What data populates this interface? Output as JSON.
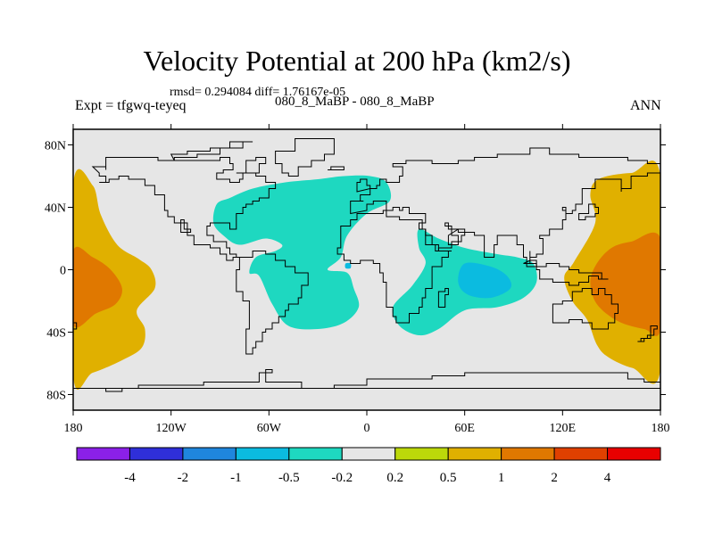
{
  "header": {
    "title": "Velocity Potential at 200 hPa (km2/s)",
    "stats": "rmsd= 0.294084 diff= 1.76167e-05",
    "experiment": "Expt = tfgwq-teyeq",
    "difference": "080_8_MaBP - 080_8_MaBP",
    "season": "ANN"
  },
  "chart_data": {
    "type": "heatmap",
    "title": "Velocity Potential at 200 hPa (km2/s)",
    "projection": "cylindrical-equidistant",
    "xlim": [
      -180,
      180
    ],
    "ylim": [
      -90,
      90
    ],
    "x_ticks": [
      {
        "value": -180,
        "label": "180"
      },
      {
        "value": -120,
        "label": "120W"
      },
      {
        "value": -60,
        "label": "60W"
      },
      {
        "value": 0,
        "label": "0"
      },
      {
        "value": 60,
        "label": "60E"
      },
      {
        "value": 120,
        "label": "120E"
      },
      {
        "value": 180,
        "label": "180"
      }
    ],
    "y_ticks": [
      {
        "value": 80,
        "label": "80N"
      },
      {
        "value": 40,
        "label": "40N"
      },
      {
        "value": 0,
        "label": "0"
      },
      {
        "value": -40,
        "label": "40S"
      },
      {
        "value": -80,
        "label": "80S"
      }
    ],
    "background_level": "-0.2 to 0.2",
    "regions": [
      {
        "name": "positive-west-pacific-outer",
        "level": "0.5 to 1",
        "value": 0.7,
        "polygon": [
          [
            -180,
            55
          ],
          [
            -168,
            54
          ],
          [
            -163,
            35
          ],
          [
            -153,
            16
          ],
          [
            -140,
            7
          ],
          [
            -132,
            0
          ],
          [
            -130,
            -12
          ],
          [
            -141,
            -26
          ],
          [
            -136,
            -38
          ],
          [
            -138,
            -50
          ],
          [
            -150,
            -58
          ],
          [
            -168,
            -66
          ],
          [
            -180,
            -68
          ]
        ]
      },
      {
        "name": "positive-west-pacific-core",
        "level": "1 to 2",
        "value": 1.2,
        "polygon": [
          [
            -180,
            12
          ],
          [
            -168,
            8
          ],
          [
            -157,
            0
          ],
          [
            -150,
            -12
          ],
          [
            -154,
            -22
          ],
          [
            -166,
            -28
          ],
          [
            -180,
            -35
          ]
        ]
      },
      {
        "name": "positive-east-pacific-outer",
        "level": "0.5 to 1",
        "value": 0.7,
        "polygon": [
          [
            180,
            60
          ],
          [
            162,
            62
          ],
          [
            142,
            58
          ],
          [
            137,
            48
          ],
          [
            140,
            30
          ],
          [
            127,
            5
          ],
          [
            121,
            -5
          ],
          [
            126,
            -20
          ],
          [
            135,
            -32
          ],
          [
            141,
            -48
          ],
          [
            148,
            -56
          ],
          [
            163,
            -63
          ],
          [
            180,
            -64
          ]
        ]
      },
      {
        "name": "positive-east-pacific-core",
        "level": "1 to 2",
        "value": 1.2,
        "polygon": [
          [
            180,
            20
          ],
          [
            162,
            18
          ],
          [
            150,
            14
          ],
          [
            141,
            4
          ],
          [
            137,
            -8
          ],
          [
            141,
            -22
          ],
          [
            154,
            -33
          ],
          [
            170,
            -38
          ],
          [
            180,
            -38
          ]
        ]
      },
      {
        "name": "negative-europe-africa",
        "level": "-0.5 to -0.2",
        "value": -0.3,
        "polygon": [
          [
            -92,
            42
          ],
          [
            -84,
            46
          ],
          [
            -70,
            52
          ],
          [
            -50,
            56
          ],
          [
            -30,
            58
          ],
          [
            -14,
            60
          ],
          [
            2,
            60
          ],
          [
            12,
            56
          ],
          [
            14,
            44
          ],
          [
            0,
            36
          ],
          [
            -12,
            22
          ],
          [
            -16,
            8
          ],
          [
            -24,
            0
          ],
          [
            -12,
            -2
          ],
          [
            -8,
            -12
          ],
          [
            -5,
            -24
          ],
          [
            -14,
            -34
          ],
          [
            -30,
            -38
          ],
          [
            -48,
            -36
          ],
          [
            -58,
            -22
          ],
          [
            -66,
            -4
          ],
          [
            -72,
            -2
          ],
          [
            -68,
            8
          ],
          [
            -56,
            12
          ],
          [
            -52,
            16
          ],
          [
            -62,
            20
          ],
          [
            -78,
            16
          ],
          [
            -88,
            22
          ],
          [
            -94,
            30
          ]
        ]
      },
      {
        "name": "negative-indian-ocean",
        "level": "-0.5 to -0.2",
        "value": -0.3,
        "polygon": [
          [
            32,
            26
          ],
          [
            44,
            20
          ],
          [
            60,
            14
          ],
          [
            80,
            10
          ],
          [
            92,
            8
          ],
          [
            102,
            4
          ],
          [
            104,
            -8
          ],
          [
            96,
            -18
          ],
          [
            80,
            -24
          ],
          [
            60,
            -26
          ],
          [
            44,
            -38
          ],
          [
            32,
            -42
          ],
          [
            20,
            -36
          ],
          [
            16,
            -24
          ],
          [
            28,
            -10
          ],
          [
            36,
            4
          ],
          [
            32,
            14
          ]
        ]
      },
      {
        "name": "negative-indian-ocean-core",
        "level": "-1 to -0.5",
        "value": -0.7,
        "polygon": [
          [
            60,
            4
          ],
          [
            76,
            2
          ],
          [
            86,
            -4
          ],
          [
            88,
            -12
          ],
          [
            76,
            -18
          ],
          [
            62,
            -16
          ],
          [
            56,
            -8
          ]
        ]
      },
      {
        "name": "tiny-negative-dot",
        "level": "-1 to -0.5",
        "value": -0.6,
        "polygon": [
          [
            -13,
            4
          ],
          [
            -10,
            4
          ],
          [
            -10,
            1
          ],
          [
            -13,
            1
          ]
        ]
      }
    ],
    "colorbar": {
      "labels": [
        "-4",
        "-2",
        "-1",
        "-0.5",
        "-0.2",
        "0.2",
        "0.5",
        "1",
        "2",
        "4"
      ],
      "colors": [
        "#8b20e8",
        "#2f2fd9",
        "#1f86dd",
        "#0bbbe0",
        "#1ed8c0",
        "#e6e6e6",
        "#bcd80a",
        "#e0b000",
        "#e07800",
        "#e04000",
        "#e80000"
      ]
    }
  }
}
